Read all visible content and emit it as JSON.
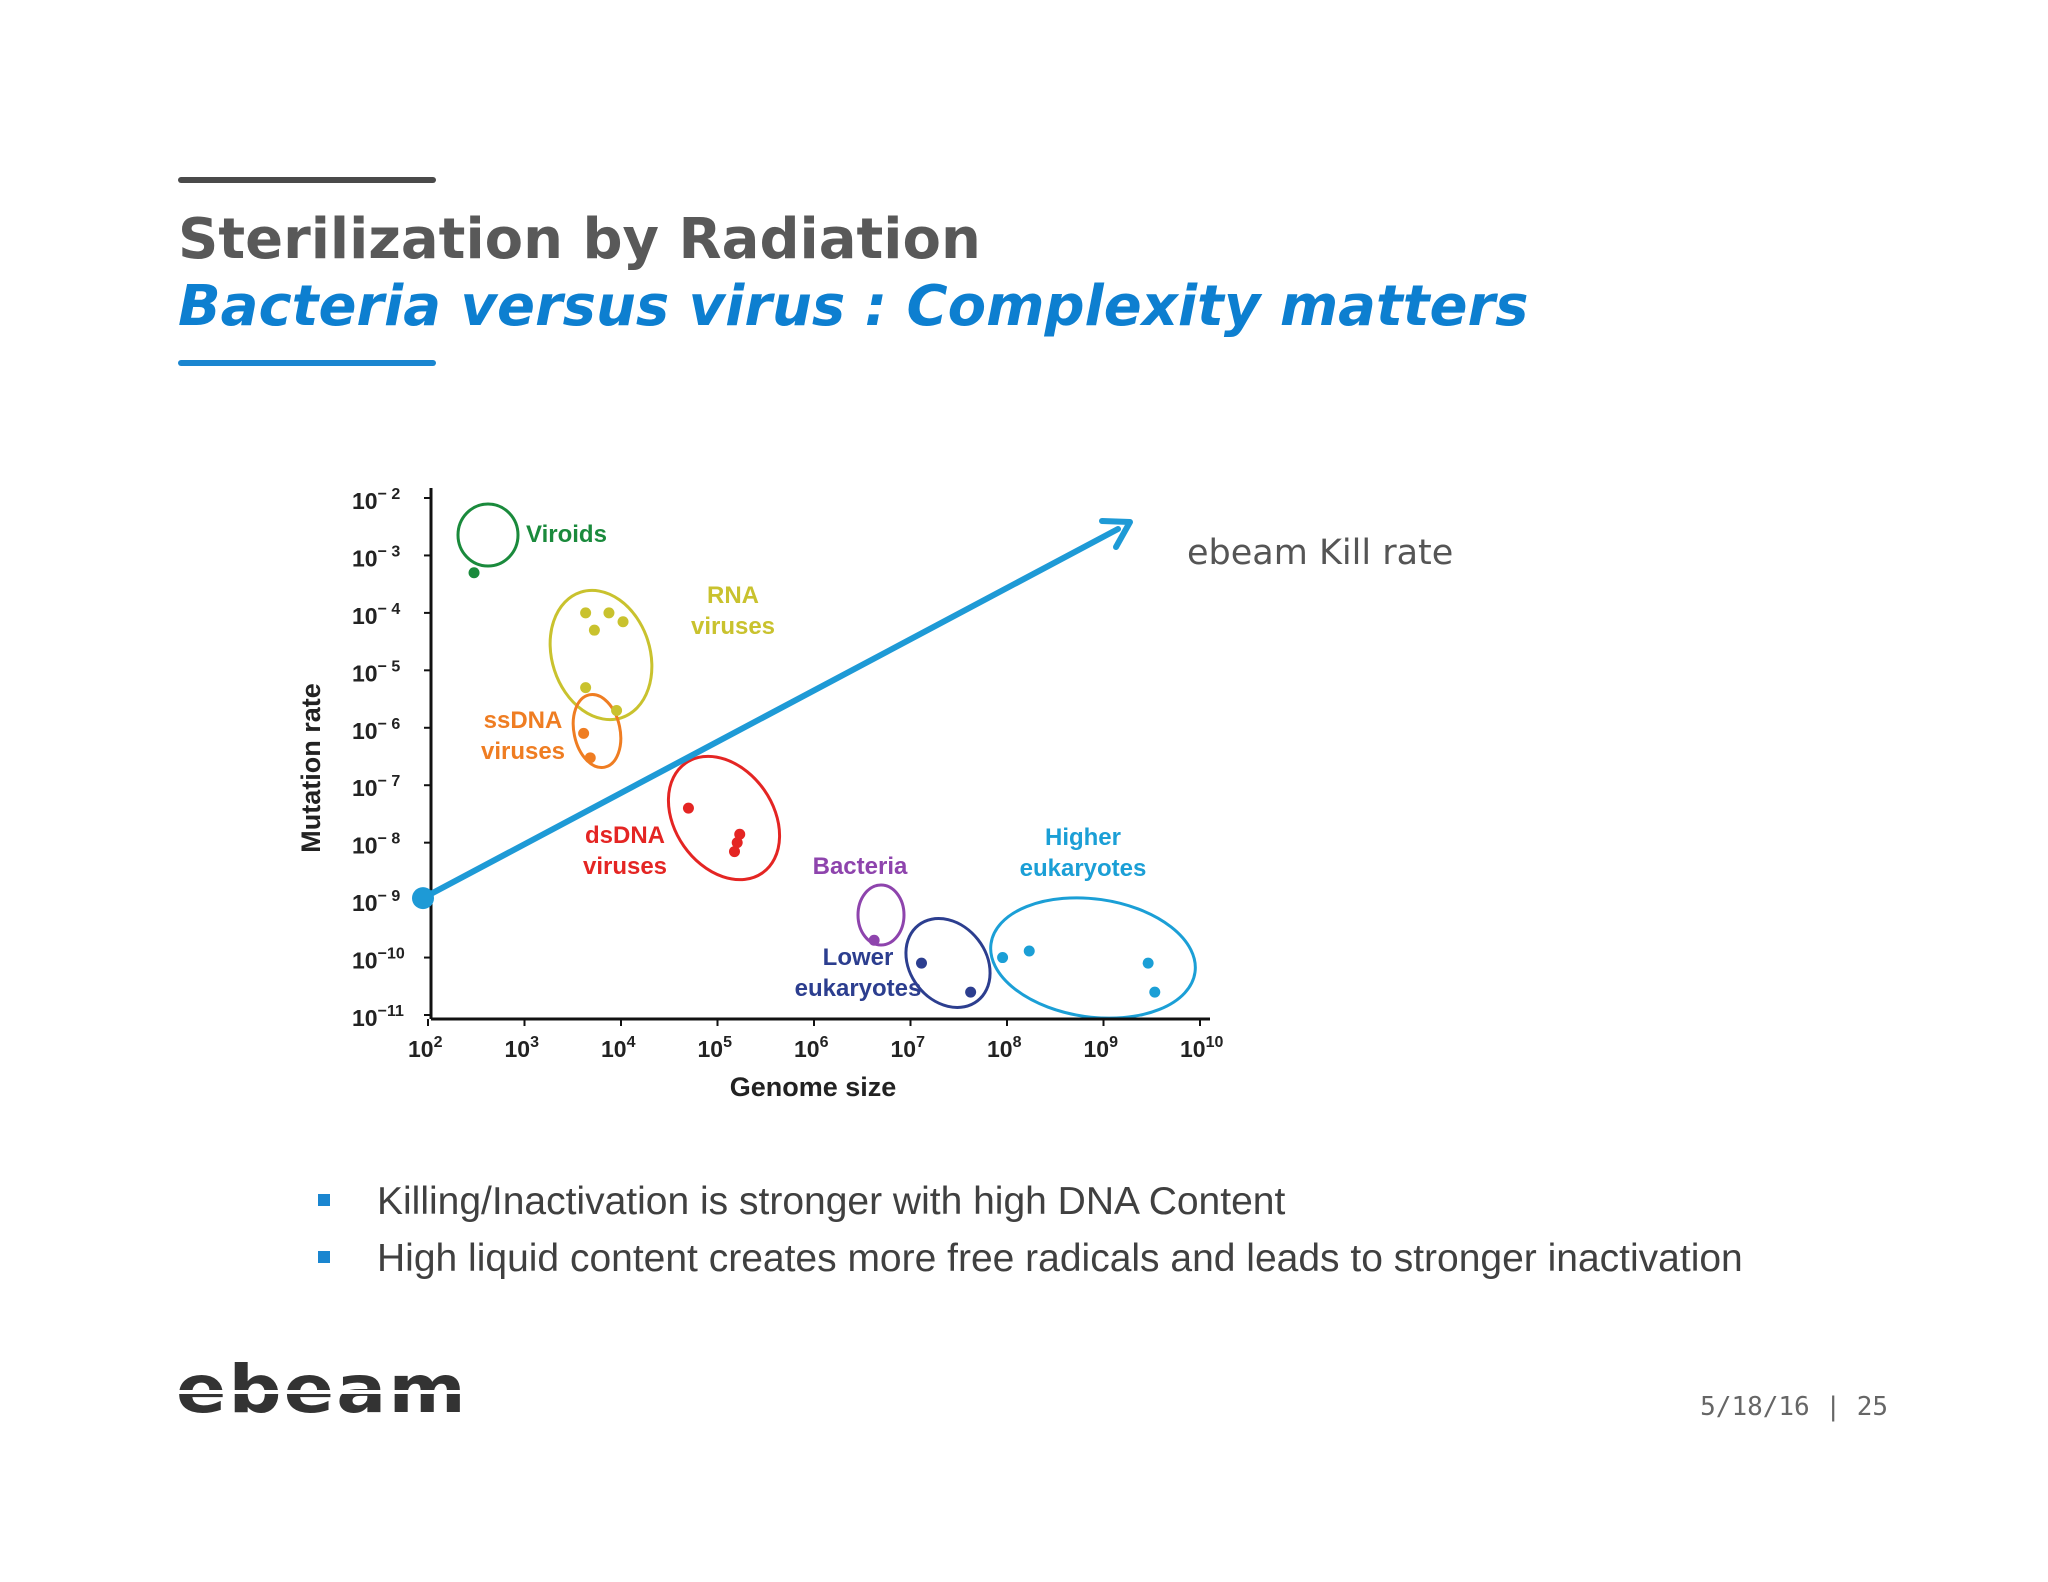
{
  "slide": {
    "title": "Sterilization by Radiation",
    "subtitle": "Bacteria versus virus : Complexity matters",
    "bullets": [
      "Killing/Inactivation is stronger with high DNA Content",
      "High liquid content creates more free radicals and leads to stronger inactivation"
    ],
    "footer": {
      "date": "5/18/16",
      "separator": "|",
      "page": "25"
    },
    "logo_text": "ebeam",
    "colors": {
      "title": "#595959",
      "subtitle": "#0d7fd0",
      "accent": "#1a86d0",
      "arrow": "#1e9ad6"
    }
  },
  "chart_data": {
    "type": "scatter",
    "title": "",
    "xlabel": "Genome size",
    "ylabel": "Mutation rate",
    "x_scale": "log",
    "y_scale": "log",
    "xlim": [
      100,
      10000000000
    ],
    "ylim": [
      1e-11,
      0.01
    ],
    "x_ticks": [
      {
        "value": 100,
        "base": "10",
        "exp": "2"
      },
      {
        "value": 1000,
        "base": "10",
        "exp": "3"
      },
      {
        "value": 10000,
        "base": "10",
        "exp": "4"
      },
      {
        "value": 100000,
        "base": "10",
        "exp": "5"
      },
      {
        "value": 1000000,
        "base": "10",
        "exp": "6"
      },
      {
        "value": 10000000,
        "base": "10",
        "exp": "7"
      },
      {
        "value": 100000000,
        "base": "10",
        "exp": "8"
      },
      {
        "value": 1000000000,
        "base": "10",
        "exp": "9"
      },
      {
        "value": 10000000000,
        "base": "10",
        "exp": "10"
      }
    ],
    "y_ticks": [
      {
        "value": 0.01,
        "base": "10",
        "exp": "− 2"
      },
      {
        "value": 0.001,
        "base": "10",
        "exp": "− 3"
      },
      {
        "value": 0.0001,
        "base": "10",
        "exp": "− 4"
      },
      {
        "value": 1e-05,
        "base": "10",
        "exp": "− 5"
      },
      {
        "value": 1e-06,
        "base": "10",
        "exp": "− 6"
      },
      {
        "value": 1e-07,
        "base": "10",
        "exp": "− 7"
      },
      {
        "value": 1e-08,
        "base": "10",
        "exp": "− 8"
      },
      {
        "value": 1e-09,
        "base": "10",
        "exp": "− 9"
      },
      {
        "value": 1e-10,
        "base": "10",
        "exp": "−10"
      },
      {
        "value": 1e-11,
        "base": "10",
        "exp": "−11"
      }
    ],
    "grid": false,
    "series": [
      {
        "name": "Viroids",
        "color": "#1a8a3c",
        "points": [
          [
            300,
            0.0005
          ]
        ]
      },
      {
        "name": "RNA viruses",
        "color": "#c9c22e",
        "points": [
          [
            4300,
            0.0001
          ],
          [
            7500,
            0.0001
          ],
          [
            5300,
            5e-05
          ],
          [
            10500,
            7e-05
          ],
          [
            4300,
            5e-06
          ],
          [
            9000,
            2e-06
          ]
        ]
      },
      {
        "name": "ssDNA viruses",
        "color": "#ef7d22",
        "points": [
          [
            4100,
            8e-07
          ],
          [
            4800,
            3e-07
          ]
        ]
      },
      {
        "name": "dsDNA viruses",
        "color": "#e42523",
        "points": [
          [
            50000,
            4e-08
          ],
          [
            160000,
            1e-08
          ],
          [
            170000,
            1.4e-08
          ],
          [
            150000,
            7e-09
          ]
        ]
      },
      {
        "name": "Bacteria",
        "color": "#8e44ad",
        "points": [
          [
            4200000,
            2e-10
          ]
        ]
      },
      {
        "name": "Lower eukaryotes",
        "color": "#2c3e8f",
        "points": [
          [
            13000000,
            8e-11
          ],
          [
            42000000,
            2.5e-11
          ]
        ]
      },
      {
        "name": "Higher eukaryotes",
        "color": "#1b9fd6",
        "points": [
          [
            90000000,
            1e-10
          ],
          [
            170000000,
            1.3e-10
          ],
          [
            2900000000,
            8e-11
          ],
          [
            3400000000,
            2.5e-11
          ]
        ]
      }
    ],
    "group_labels": [
      {
        "lines": [
          "Viroids"
        ],
        "color": "#1a8a3c"
      },
      {
        "lines": [
          "RNA",
          "viruses"
        ],
        "color": "#c9c22e"
      },
      {
        "lines": [
          "ssDNA",
          "viruses"
        ],
        "color": "#ef7d22"
      },
      {
        "lines": [
          "dsDNA",
          "viruses"
        ],
        "color": "#e42523"
      },
      {
        "lines": [
          "Bacteria"
        ],
        "color": "#8e44ad"
      },
      {
        "lines": [
          "Lower",
          "eukaryotes"
        ],
        "color": "#2c3e8f"
      },
      {
        "lines": [
          "Higher",
          "eukaryotes"
        ],
        "color": "#1b9fd6"
      }
    ],
    "annotation": {
      "text": "ebeam Kill rate",
      "arrow_from": [
        100,
        1e-09
      ],
      "arrow_to": [
        30000000,
        0.001
      ],
      "color": "#1e9ad6"
    }
  }
}
